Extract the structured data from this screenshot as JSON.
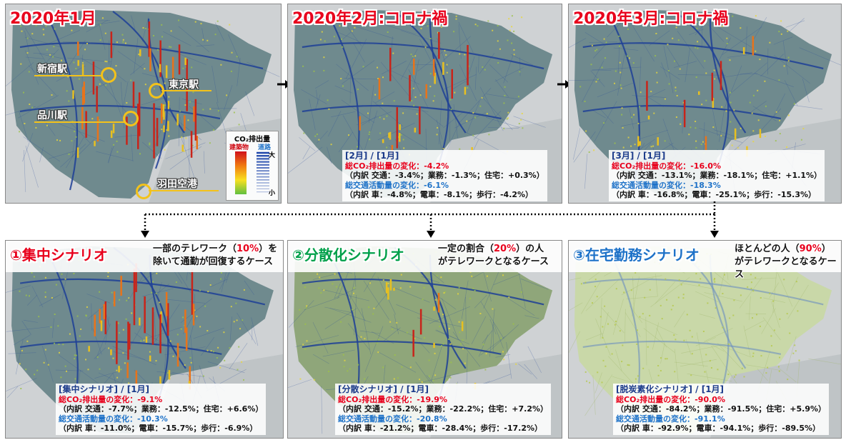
{
  "panels": {
    "jan": {
      "title": "2020年1月"
    },
    "feb": {
      "title": "2020年2月:コロナ禍",
      "stats": {
        "header": "[2月] / [1月]",
        "co2_label": "総CO₂排出量の変化：-4.2%",
        "co2_breakdown": "（内訳 交通：-3.4%；業務：-1.3%；住宅：+0.3%）",
        "traffic_label": "総交通活動量の変化：-6.1%",
        "traffic_breakdown": "（内訳 車：-4.8%；電車：-8.1%；歩行：-4.2%）"
      }
    },
    "mar": {
      "title": "2020年3月:コロナ禍",
      "stats": {
        "header": "[3月] / [1月]",
        "co2_label": "総CO₂排出量の変化：-16.0%",
        "co2_breakdown": "（内訳 交通：-13.1%；業務：-18.1%；住宅：+1.1%）",
        "traffic_label": "総交通活動量の変化：-18.3%",
        "traffic_breakdown": "（内訳 車：-16.8%；電車：-25.1%；歩行：-15.3%）"
      }
    },
    "s1": {
      "title": "①集中シナリオ",
      "desc1_pre": "一部のテレワーク（",
      "desc1_hl": "10%",
      "desc1_post": "）を",
      "desc2": "除いて通勤が回復するケース",
      "stats": {
        "header": "[集中シナリオ] / [1月]",
        "co2_label": "総CO₂排出量の変化：-9.1%",
        "co2_breakdown": "（内訳 交通：-7.7%；業務：-12.5%；住宅：+6.6%）",
        "traffic_label": "総交通活動量の変化：-10.3%",
        "traffic_breakdown": "（内訳 車：-11.0%；電車：-15.7%；歩行：-6.9%）"
      }
    },
    "s2": {
      "title": "②分散化シナリオ",
      "desc1_pre": "一定の割合（",
      "desc1_hl": "20%",
      "desc1_post": "）の人",
      "desc2": "がテレワークとなるケース",
      "stats": {
        "header": "[分散シナリオ] / [1月]",
        "co2_label": "総CO₂排出量の変化：-19.9%",
        "co2_breakdown": "（内訳 交通：-15.2%；業務：-22.2%；住宅：+7.2%）",
        "traffic_label": "総交通活動量の変化：-20.8%",
        "traffic_breakdown": "（内訳 車：-21.2%；電車：-28.4%；歩行：-17.2%）"
      }
    },
    "s3": {
      "title": "③在宅勤務シナリオ",
      "desc1_pre": "ほとんどの人（",
      "desc1_hl": "90%",
      "desc1_post": "）",
      "desc2": "がテレワークとなるケース",
      "stats": {
        "header": "[脱炭素化シナリオ] / [1月]",
        "co2_label": "総CO₂排出量の変化：-90.0%",
        "co2_breakdown": "（内訳 交通：-84.2%；業務：-91.5%；住宅：+5.9%）",
        "traffic_label": "総交通活動量の変化：-91.1%",
        "traffic_breakdown": "（内訳 車：-92.9%；電車：-94.1%；歩行：-89.5%）"
      }
    }
  },
  "stations": {
    "shinjuku": "新宿駅",
    "tokyo": "東京駅",
    "shinagawa": "品川駅",
    "haneda": "羽田空港"
  },
  "legend": {
    "title": "CO₂排出量",
    "buildings": "建築物",
    "roads": "道路",
    "big": "大",
    "small": "小"
  },
  "colors": {
    "title_red": "#e8001c",
    "scenario2_green": "#00a04a",
    "scenario3_blue": "#1e72c8",
    "traffic_blue": "#1e72c8",
    "co2_red": "#e8001c"
  }
}
